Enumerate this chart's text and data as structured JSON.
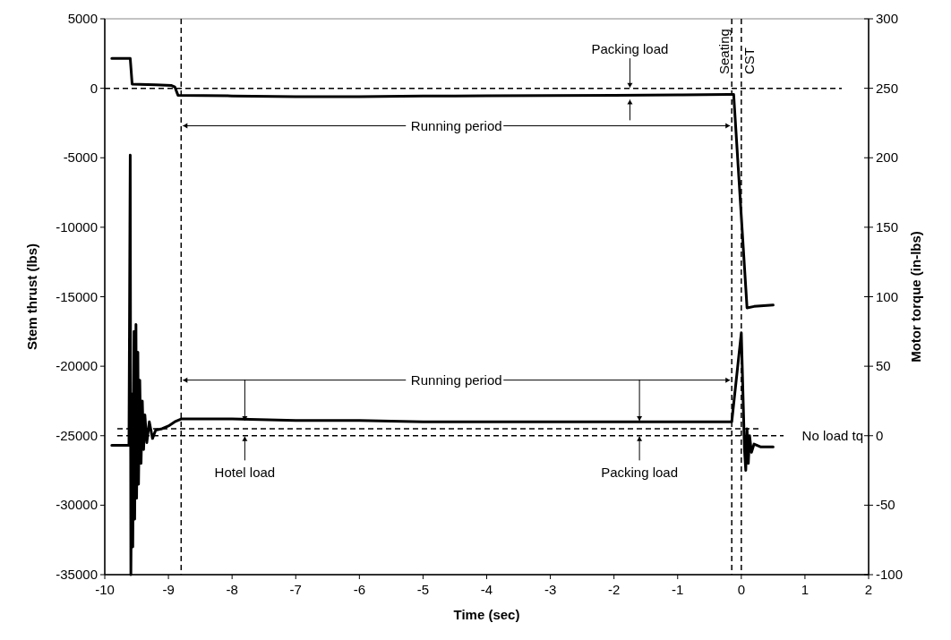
{
  "chart_data": {
    "type": "line",
    "xlabel": "Time (sec)",
    "ylabel": "Stem thrust (lbs)",
    "y2label": "Motor torque (in-lbs)",
    "xlim": [
      -10,
      2
    ],
    "xticks": [
      -10,
      -9,
      -8,
      -7,
      -6,
      -5,
      -4,
      -3,
      -2,
      -1,
      0,
      1,
      2
    ],
    "ylim": [
      -35000,
      5000
    ],
    "yticks": [
      -35000,
      -30000,
      -25000,
      -20000,
      -15000,
      -10000,
      -5000,
      0,
      5000
    ],
    "y2lim": [
      -100,
      300
    ],
    "y2ticks": [
      -100,
      -50,
      0,
      50,
      100,
      150,
      200,
      250,
      300
    ],
    "marker": "none",
    "line_style": "solid",
    "series": [
      {
        "color": "#000000",
        "x": [
          -9.89,
          -9.6,
          -9.57,
          -9.2,
          -8.95,
          -8.9,
          -8.85,
          -8,
          -7,
          -6,
          -5,
          -4,
          -3,
          -2,
          -1,
          -0.2,
          -0.12,
          0.09,
          0.2,
          0.5
        ],
        "values": [
          2150,
          2150,
          300,
          250,
          200,
          100,
          -500,
          -550,
          -600,
          -600,
          -560,
          -540,
          -520,
          -500,
          -480,
          -450,
          -450,
          -15800,
          -15700,
          -15600
        ]
      },
      {
        "color": "#000000",
        "axis": "y2",
        "x": [
          -9.89,
          -9.62,
          -9.6,
          -9.59,
          -9.57,
          -9.56,
          -9.54,
          -9.53,
          -9.51,
          -9.5,
          -9.48,
          -9.47,
          -9.45,
          -9.43,
          -9.41,
          -9.39,
          -9.37,
          -9.34,
          -9.3,
          -9.25,
          -9.2,
          -9.1,
          -9,
          -8.9,
          -8.8,
          -8,
          -7,
          -6,
          -5,
          -4,
          -3,
          -2,
          -1,
          -0.15,
          0,
          0.05,
          0.07,
          0.09,
          0.11,
          0.13,
          0.16,
          0.2,
          0.3,
          0.5
        ],
        "values": [
          -7,
          -7,
          202,
          -100,
          30,
          -80,
          75,
          -60,
          80,
          -45,
          60,
          -35,
          40,
          -20,
          25,
          -10,
          15,
          -5,
          10,
          -2,
          4,
          5,
          7,
          10,
          12,
          12,
          11,
          11,
          10,
          10,
          10,
          10,
          10,
          10,
          74,
          -10,
          -25,
          5,
          -20,
          0,
          -12,
          -6,
          -8,
          -8
        ]
      }
    ],
    "ref_lines": [
      {
        "axis": "y2",
        "value": 250,
        "line_style": "dashed",
        "color": "#000000"
      },
      {
        "axis": "y2",
        "value": 0,
        "label": "No load tq",
        "line_style": "dashed",
        "color": "#000000"
      },
      {
        "axis": "y2",
        "value": 5,
        "line_style": "dashed",
        "color": "#000000"
      },
      {
        "axis": "x",
        "value": -8.8,
        "line_style": "dashed",
        "color": "#000000"
      },
      {
        "axis": "x",
        "value": -0.15,
        "label": "Seating",
        "line_style": "dashed",
        "color": "#000000"
      },
      {
        "axis": "x",
        "value": 0,
        "label": "CST",
        "line_style": "dashed",
        "color": "#000000"
      }
    ],
    "annotations": [
      {
        "text": "Packing load",
        "x": -1.75,
        "y": -500
      },
      {
        "text": "Running period",
        "x": -8.8,
        "y": -2700
      },
      {
        "text": "Running period",
        "x": -8.8,
        "y": -21000
      },
      {
        "text": "Hotel load",
        "x": -7.8,
        "y": -25000
      },
      {
        "text": "Packing load",
        "x": -1.6,
        "y": -25000
      }
    ]
  }
}
